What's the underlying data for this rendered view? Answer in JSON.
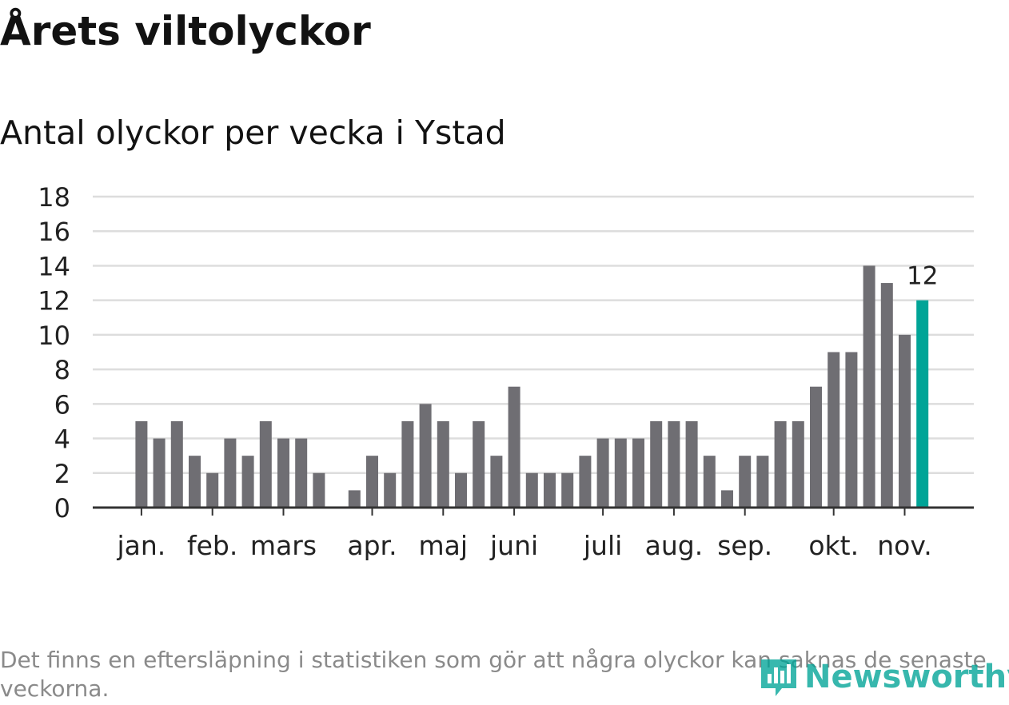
{
  "title": "Årets viltolyckor",
  "subtitle": "Antal olyckor per vecka i Ystad",
  "footnote": "Det finns en eftersläpning i statistiken som gör att några olyckor kan saknas de senaste veckorna.",
  "brand": {
    "name": "Newsworthy",
    "icon": "newsworthy-logo-icon",
    "color": "#00a497"
  },
  "colors": {
    "bar": "#6f6e73",
    "highlight": "#00a497",
    "grid": "#dddddd",
    "axis": "#333333"
  },
  "chart_data": {
    "type": "bar",
    "ylim": [
      0,
      18
    ],
    "yticks": [
      0,
      2,
      4,
      6,
      8,
      10,
      12,
      14,
      16,
      18
    ],
    "grid": true,
    "values": [
      null,
      null,
      5,
      4,
      5,
      3,
      2,
      4,
      3,
      5,
      4,
      4,
      2,
      null,
      1,
      3,
      2,
      5,
      6,
      5,
      2,
      5,
      3,
      7,
      2,
      2,
      2,
      3,
      4,
      4,
      4,
      5,
      5,
      5,
      3,
      1,
      3,
      3,
      5,
      5,
      7,
      9,
      9,
      14,
      13,
      10,
      12
    ],
    "month_ticks": [
      {
        "label": "jan.",
        "week": 2
      },
      {
        "label": "feb.",
        "week": 6
      },
      {
        "label": "mars",
        "week": 10
      },
      {
        "label": "apr.",
        "week": 15
      },
      {
        "label": "maj",
        "week": 19
      },
      {
        "label": "juni",
        "week": 23
      },
      {
        "label": "juli",
        "week": 28
      },
      {
        "label": "aug.",
        "week": 32
      },
      {
        "label": "sep.",
        "week": 36
      },
      {
        "label": "okt.",
        "week": 41
      },
      {
        "label": "nov.",
        "week": 45
      }
    ],
    "highlight": {
      "week": 46,
      "label": "12"
    }
  }
}
